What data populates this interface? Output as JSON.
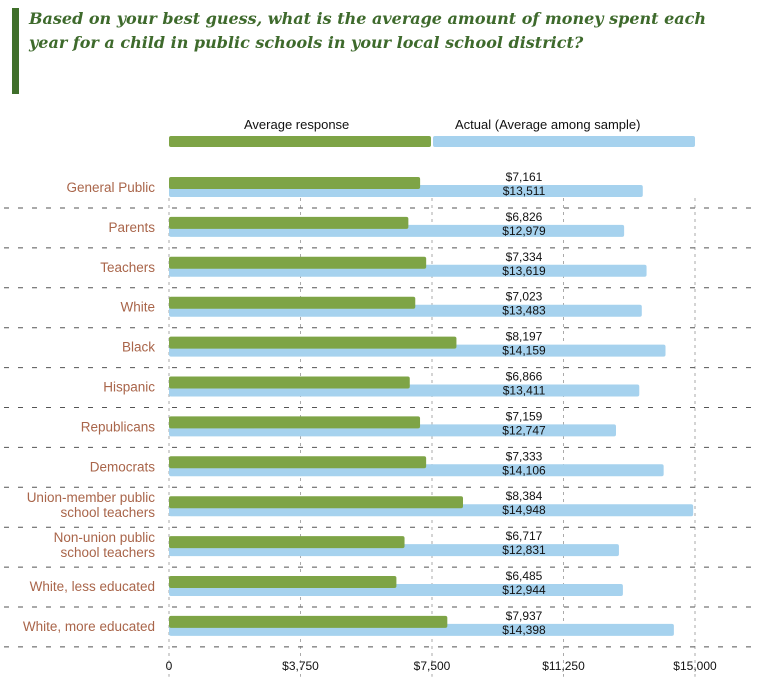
{
  "question": "Based on your best guess, what is the average amount of money spent each year for a child in public schools in your local school district?",
  "legend": {
    "avg_label": "Average response",
    "actual_label": "Actual (Average among sample)"
  },
  "colors": {
    "accent": "#3f6f2a",
    "average_response": "#7ea446",
    "actual": "#a6d2ee",
    "category_text": "#a9654a",
    "question_text": "#3e6a2c"
  },
  "chart_data": {
    "type": "bar",
    "orientation": "horizontal",
    "categories": [
      "General Public",
      "Parents",
      "Teachers",
      "White",
      "Black",
      "Hispanic",
      "Republicans",
      "Democrats",
      "Union-member public school teachers",
      "Non-union public school teachers",
      "White, less educated",
      "White, more educated"
    ],
    "category_display": [
      [
        "General Public"
      ],
      [
        "Parents"
      ],
      [
        "Teachers"
      ],
      [
        "White"
      ],
      [
        "Black"
      ],
      [
        "Hispanic"
      ],
      [
        "Republicans"
      ],
      [
        "Democrats"
      ],
      [
        "Union-member public",
        "school teachers"
      ],
      [
        "Non-union public",
        "school teachers"
      ],
      [
        "White, less educated"
      ],
      [
        "White, more educated"
      ]
    ],
    "series": [
      {
        "name": "Average response",
        "values": [
          7161,
          6826,
          7334,
          7023,
          8197,
          6866,
          7159,
          7333,
          8384,
          6717,
          6485,
          7937
        ],
        "labels": [
          "$7,161",
          "$6,826",
          "$7,334",
          "$7,023",
          "$8,197",
          "$6,866",
          "$7,159",
          "$7,333",
          "$8,384",
          "$6,717",
          "$6,485",
          "$7,937"
        ]
      },
      {
        "name": "Actual (Average among sample)",
        "values": [
          13511,
          12979,
          13619,
          13483,
          14159,
          13411,
          12747,
          14106,
          14948,
          12831,
          12944,
          14398
        ],
        "labels": [
          "$13,511",
          "$12,979",
          "$13,619",
          "$13,483",
          "$14,159",
          "$13,411",
          "$12,747",
          "$14,106",
          "$14,948",
          "$12,831",
          "$12,944",
          "$14,398"
        ]
      }
    ],
    "xlim": [
      0,
      15000
    ],
    "xticks": [
      0,
      3750,
      7500,
      11250,
      15000
    ],
    "xtick_labels": [
      "0",
      "$3,750",
      "$7,500",
      "$11,250",
      "$15,000"
    ],
    "grid": "dashed"
  }
}
